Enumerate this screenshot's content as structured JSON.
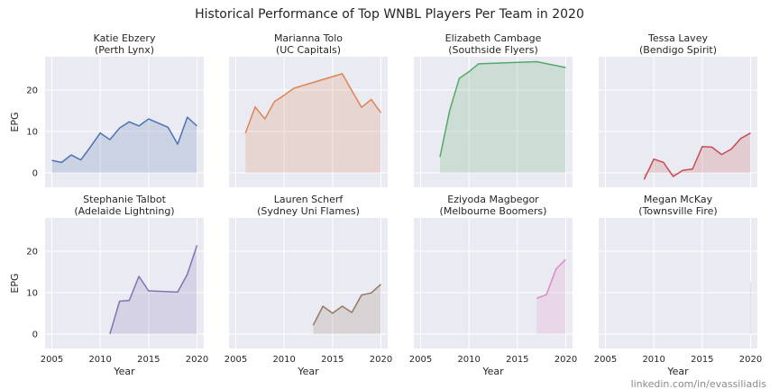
{
  "chart_data": {
    "type": "area",
    "title": "Historical Performance of Top WNBL Players Per Team in 2020",
    "xlabel": "Year",
    "ylabel": "EPG",
    "xlim": [
      2004.3,
      2020.7
    ],
    "ylim": [
      -3.5,
      28
    ],
    "xticks": [
      2005,
      2010,
      2015,
      2020
    ],
    "yticks": [
      0,
      10,
      20
    ],
    "grid": true,
    "panels": [
      {
        "name": "Katie Ebzery",
        "team": "(Perth Lynx)",
        "color": "#4c72b0",
        "x": [
          2005,
          2006,
          2007,
          2008,
          2009,
          2010,
          2011,
          2012,
          2013,
          2014,
          2015,
          2016,
          2017,
          2018,
          2019,
          2020
        ],
        "y": [
          3.0,
          2.5,
          4.3,
          3.1,
          6.3,
          9.6,
          8.0,
          10.8,
          12.3,
          11.3,
          13.0,
          12.0,
          11.0,
          6.9,
          13.4,
          11.3
        ]
      },
      {
        "name": "Marianna Tolo",
        "team": "(UC Capitals)",
        "color": "#dd8452",
        "x": [
          2006,
          2007,
          2008,
          2009,
          2010,
          2011,
          2016,
          2017,
          2018,
          2019,
          2020
        ],
        "y": [
          9.6,
          15.9,
          13.0,
          17.2,
          18.7,
          20.4,
          23.9,
          19.8,
          15.8,
          17.7,
          14.5
        ]
      },
      {
        "name": "Elizabeth Cambage",
        "team": "(Southside Flyers)",
        "color": "#55a868",
        "x": [
          2007,
          2008,
          2009,
          2010,
          2011,
          2017,
          2020
        ],
        "y": [
          3.8,
          15.0,
          22.8,
          24.4,
          26.3,
          26.8,
          25.4
        ]
      },
      {
        "name": "Tessa Lavey",
        "team": "(Bendigo Spirit)",
        "color": "#c44e52",
        "x": [
          2009,
          2010,
          2011,
          2012,
          2013,
          2014,
          2015,
          2016,
          2017,
          2018,
          2019,
          2020
        ],
        "y": [
          -1.6,
          3.3,
          2.5,
          -0.9,
          0.6,
          0.9,
          6.3,
          6.2,
          4.4,
          5.7,
          8.3,
          9.6
        ]
      },
      {
        "name": "Stephanie Talbot",
        "team": "(Adelaide Lightning)",
        "color": "#8172b3",
        "x": [
          2011,
          2012,
          2013,
          2014,
          2015,
          2018,
          2019,
          2020
        ],
        "y": [
          0.0,
          7.9,
          8.1,
          13.9,
          10.4,
          10.1,
          14.4,
          21.4
        ]
      },
      {
        "name": "Lauren Scherf",
        "team": "(Sydney Uni Flames)",
        "color": "#937860",
        "x": [
          2013,
          2014,
          2015,
          2016,
          2017,
          2018,
          2019,
          2020
        ],
        "y": [
          2.1,
          6.7,
          5.0,
          6.7,
          5.2,
          9.4,
          9.9,
          12.0
        ]
      },
      {
        "name": "Eziyoda Magbegor",
        "team": "(Melbourne Boomers)",
        "color": "#da8bc3",
        "x": [
          2017,
          2018,
          2019,
          2020
        ],
        "y": [
          8.6,
          9.5,
          15.7,
          18.0
        ]
      },
      {
        "name": "Megan McKay",
        "team": "(Townsville Fire)",
        "color": "#e0e0e0",
        "x": [
          2020
        ],
        "y": [
          12.5
        ]
      }
    ]
  },
  "credit": "linkedin.com/in/evassiliadis"
}
